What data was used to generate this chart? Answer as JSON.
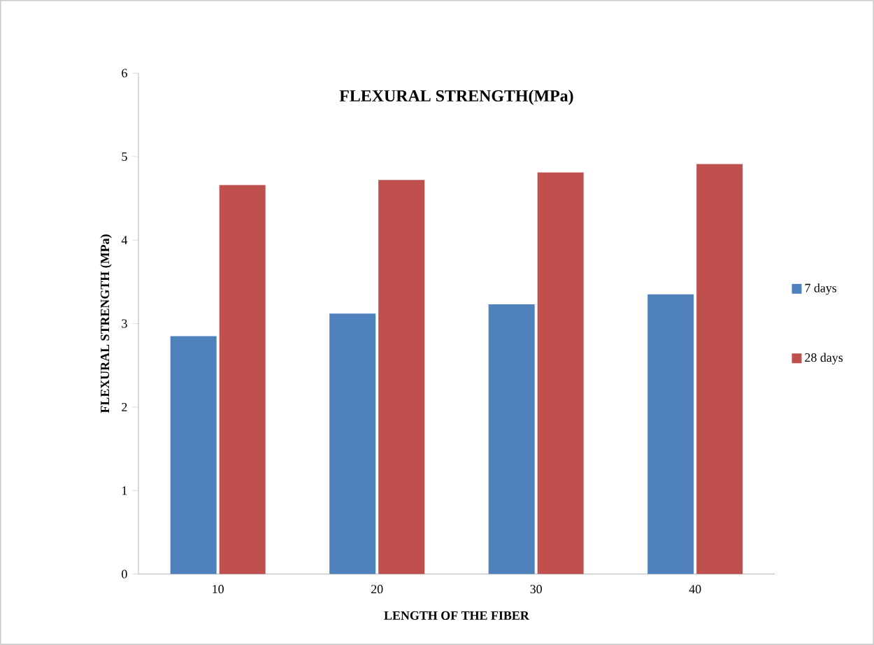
{
  "chart_data": {
    "type": "bar",
    "title": "FLEXURAL STRENGTH(MPa)",
    "xlabel": "LENGTH OF THE FIBER",
    "ylabel": "FLEXURAL STRENGTH (MPa)",
    "categories": [
      "10",
      "20",
      "30",
      "40"
    ],
    "series": [
      {
        "name": "7 days",
        "color": "#4f81bd",
        "values": [
          2.85,
          3.12,
          3.23,
          3.35
        ]
      },
      {
        "name": "28 days",
        "color": "#c0504d",
        "values": [
          4.66,
          4.72,
          4.81,
          4.91
        ]
      }
    ],
    "ylim": [
      0,
      6
    ],
    "yticks": [
      0,
      1,
      2,
      3,
      4,
      5,
      6
    ],
    "grid": false,
    "legend": "right"
  }
}
